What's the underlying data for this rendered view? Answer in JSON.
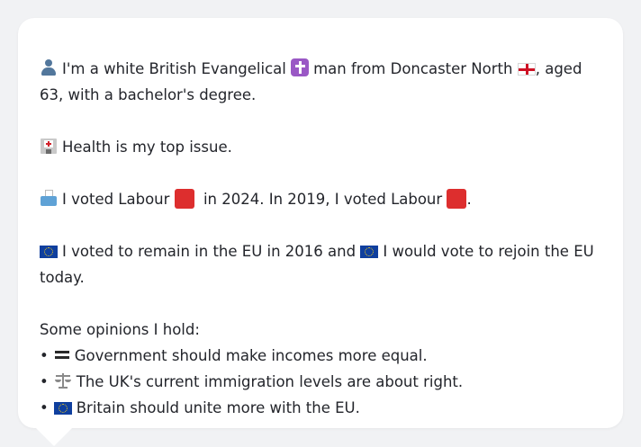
{
  "profile": {
    "identity": {
      "part1": "I'm a white British Evangelical",
      "part2": "man from Doncaster North",
      "part3": ", aged 63, with a bachelor's degree."
    },
    "issue": "Health is my top issue.",
    "vote": {
      "part1": "I voted Labour",
      "part2": "in 2024. In 2019, I voted Labour",
      "part3": "."
    },
    "eu": {
      "part1": "I voted to remain in the EU in 2016 and",
      "part2": "I would vote to rejoin the EU today."
    },
    "opinions_heading": "Some opinions I hold:",
    "bullet": "•",
    "opinions": [
      {
        "icon": "heavy-equals-icon",
        "text": "Government should make incomes more equal."
      },
      {
        "icon": "scales-icon",
        "text": "The UK's current immigration levels are about right."
      },
      {
        "icon": "eu-flag-icon",
        "text": "Britain should unite more with the EU."
      }
    ]
  },
  "colors": {
    "background": "#f1f2f4",
    "card": "#ffffff",
    "text": "#23252b",
    "labour_red": "#dd2e2e",
    "eu_blue": "#0f3f9e"
  }
}
